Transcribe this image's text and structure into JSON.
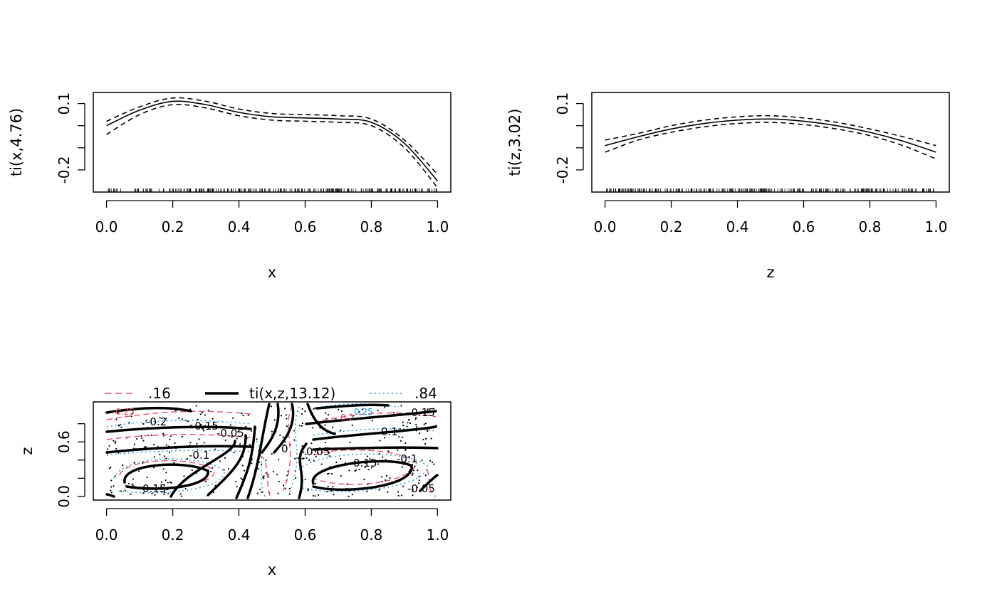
{
  "chart_data": [
    {
      "type": "line",
      "title": "",
      "xlabel": "x",
      "ylabel": "ti(x,4.76)",
      "xlim": [
        -0.04,
        1.04
      ],
      "ylim": [
        -0.3,
        0.15
      ],
      "xticks": [
        "0.0",
        "0.2",
        "0.4",
        "0.6",
        "0.8",
        "1.0"
      ],
      "yticks": [
        "-0.2",
        "0.1"
      ],
      "rug": true,
      "x": [
        0.0,
        0.1,
        0.2,
        0.3,
        0.4,
        0.5,
        0.6,
        0.7,
        0.8,
        0.9,
        1.0
      ],
      "series": [
        {
          "role": "estimate",
          "style": "solid",
          "values": [
            0.0,
            0.07,
            0.11,
            0.095,
            0.06,
            0.04,
            0.035,
            0.03,
            0.015,
            -0.08,
            -0.25
          ]
        },
        {
          "role": "upper",
          "style": "dashed",
          "values": [
            0.02,
            0.085,
            0.125,
            0.11,
            0.075,
            0.055,
            0.05,
            0.045,
            0.03,
            -0.065,
            -0.22
          ]
        },
        {
          "role": "lower",
          "style": "dashed",
          "values": [
            -0.04,
            0.05,
            0.095,
            0.08,
            0.045,
            0.025,
            0.02,
            0.015,
            0.0,
            -0.1,
            -0.28
          ]
        }
      ]
    },
    {
      "type": "line",
      "title": "",
      "xlabel": "z",
      "ylabel": "ti(z,3.02)",
      "xlim": [
        -0.04,
        1.04
      ],
      "ylim": [
        -0.3,
        0.15
      ],
      "xticks": [
        "0.0",
        "0.2",
        "0.4",
        "0.6",
        "0.8",
        "1.0"
      ],
      "yticks": [
        "-0.2",
        "0.1"
      ],
      "rug": true,
      "x": [
        0.0,
        0.1,
        0.2,
        0.3,
        0.4,
        0.5,
        0.6,
        0.7,
        0.8,
        0.9,
        1.0
      ],
      "series": [
        {
          "role": "estimate",
          "style": "solid",
          "values": [
            -0.09,
            -0.05,
            -0.015,
            0.01,
            0.025,
            0.03,
            0.02,
            0.0,
            -0.03,
            -0.07,
            -0.12
          ]
        },
        {
          "role": "upper",
          "style": "dashed",
          "values": [
            -0.065,
            -0.035,
            0.0,
            0.025,
            0.04,
            0.045,
            0.035,
            0.015,
            -0.015,
            -0.05,
            -0.09
          ]
        },
        {
          "role": "lower",
          "style": "dashed",
          "values": [
            -0.12,
            -0.065,
            -0.03,
            -0.005,
            0.01,
            0.015,
            0.005,
            -0.015,
            -0.045,
            -0.09,
            -0.15
          ]
        }
      ]
    },
    {
      "type": "contour",
      "title": "",
      "xlabel": "x",
      "ylabel": "z",
      "xlim": [
        -0.04,
        1.04
      ],
      "ylim": [
        -0.04,
        1.04
      ],
      "xticks": [
        "0.0",
        "0.2",
        "0.4",
        "0.6",
        "0.8",
        "1.0"
      ],
      "yticks": [
        "0.0",
        "0.6"
      ],
      "legend": [
        {
          "label": ".16",
          "style": "dashed",
          "color": "#DF536B"
        },
        {
          "label": "ti(x,z,13.12)",
          "style": "solid",
          "color": "#000000"
        },
        {
          "label": ".84",
          "style": "dotted",
          "color": "#2297E6"
        }
      ],
      "contour_labels": [
        "-0.2",
        "-0.15",
        "-0.1",
        "-0.05",
        "0",
        "0.05",
        "0.1",
        "0.15",
        "-0.25",
        "-0.2",
        "0.25",
        "0.2"
      ],
      "colors": {
        "lower": "#DF536B",
        "estimate": "#000000",
        "upper": "#2297E6"
      }
    }
  ]
}
